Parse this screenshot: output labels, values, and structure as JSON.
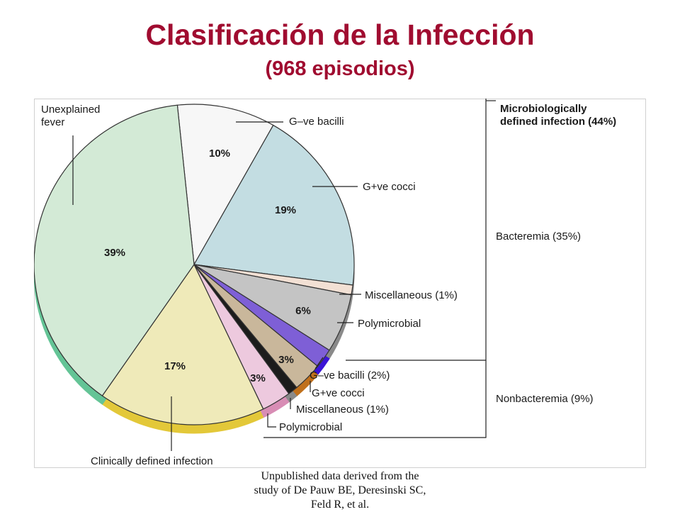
{
  "slide": {
    "title": "Clasificación de la Infección",
    "subtitle": "(968 episodios)",
    "footnote": [
      "Unpublished data derived from the",
      "study of De Pauw BE, Deresinski SC,",
      "Feld R, et al."
    ]
  },
  "chart_data": {
    "type": "pie",
    "title": "",
    "slices": [
      {
        "key": "gneg_bacilli_bact",
        "value": 10,
        "value_label": "10%",
        "label": "G–ve bacilli",
        "color": "#f7f7f7",
        "group": "Bacteremia (35%)"
      },
      {
        "key": "gpos_cocci_bact",
        "value": 19,
        "value_label": "19%",
        "label": "G+ve cocci",
        "color": "#c3dde2",
        "group": "Bacteremia (35%)"
      },
      {
        "key": "misc_bact",
        "value": 1,
        "value_label": "",
        "label": "Miscellaneous (1%)",
        "color": "#f2e0d4",
        "group": "Bacteremia (35%)"
      },
      {
        "key": "poly_bact",
        "value": 6,
        "value_label": "6%",
        "label": "Polymicrobial",
        "color": "#c4c4c4",
        "group": "Bacteremia (35%)"
      },
      {
        "key": "gneg_bacilli_nonbact",
        "value": 2,
        "value_label": "",
        "label": "G–ve bacilli (2%)",
        "color": "#7e5fd6",
        "group": "Nonbacteremia (9%)"
      },
      {
        "key": "gpos_cocci_nonbact",
        "value": 3,
        "value_label": "3%",
        "label": "G+ve cocci",
        "color": "#c9b79b",
        "group": "Nonbacteremia (9%)"
      },
      {
        "key": "misc_nonbact",
        "value": 1,
        "value_label": "",
        "label": "Miscellaneous (1%)",
        "color": "#1c1c1c",
        "group": "Nonbacteremia (9%)"
      },
      {
        "key": "poly_nonbact",
        "value": 3,
        "value_label": "3%",
        "label": "Polymicrobial",
        "color": "#edc9de",
        "group": "Nonbacteremia (9%)"
      },
      {
        "key": "clinical",
        "value": 17,
        "value_label": "17%",
        "label": "Clinically defined infection",
        "color": "#efeab9",
        "group": ""
      },
      {
        "key": "unexplained",
        "value": 39,
        "value_label": "39%",
        "label": "Unexplained fever",
        "color": "#d3ead6",
        "group": ""
      }
    ],
    "rim_colors": {
      "unexplained": "#64c496",
      "clinical": "#e3c839",
      "poly_nonbact": "#d88db5",
      "gpos_cocci_nonbact": "#c0701c",
      "gneg_bacilli_nonbact": "#3b14d6",
      "default": "#8a8a8a"
    },
    "group_labels": {
      "microbiologic": "Microbiologically defined infection (44%)",
      "bacteremia": "Bacteremia (35%)",
      "nonbacteremia": "Nonbacteremia (9%)"
    }
  }
}
